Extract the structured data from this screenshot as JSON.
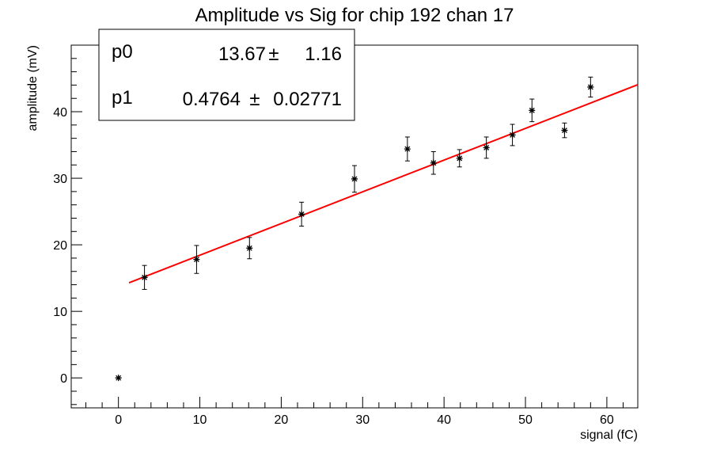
{
  "chart_data": {
    "type": "scatter",
    "title": "Amplitude vs Sig for chip 192 chan 17",
    "xlabel": "signal (fC)",
    "ylabel": "amplitude (mV)",
    "xlim": [
      -5.8,
      63.8
    ],
    "ylim": [
      -4.5,
      50
    ],
    "xticks": [
      0,
      10,
      20,
      30,
      40,
      50,
      60
    ],
    "yticks": [
      0,
      10,
      20,
      30,
      40
    ],
    "grid": false,
    "series": [
      {
        "marker": "star",
        "color": "#000000",
        "x": [
          0.0,
          3.2,
          9.6,
          16.1,
          22.5,
          29.0,
          35.5,
          38.7,
          41.9,
          45.2,
          48.4,
          50.8,
          54.8,
          58.0
        ],
        "y": [
          0.0,
          15.1,
          17.8,
          19.5,
          24.6,
          29.9,
          34.4,
          32.3,
          33.0,
          34.6,
          36.5,
          40.2,
          37.2,
          43.7
        ],
        "yerr": [
          0.0,
          1.8,
          2.1,
          1.6,
          1.8,
          2.0,
          1.8,
          1.7,
          1.3,
          1.6,
          1.6,
          1.7,
          1.1,
          1.5
        ]
      }
    ],
    "fit": {
      "type": "linear",
      "color": "#ff0000",
      "p0": 13.67,
      "p1": 0.4764,
      "x_range": [
        1.3,
        63.8
      ]
    },
    "legend": "top-left",
    "stats": [
      {
        "name": "p0",
        "value": "13.67",
        "error": "1.16"
      },
      {
        "name": "p1",
        "value": "0.4764",
        "error": "0.02771"
      }
    ],
    "pm_symbol": "±"
  }
}
